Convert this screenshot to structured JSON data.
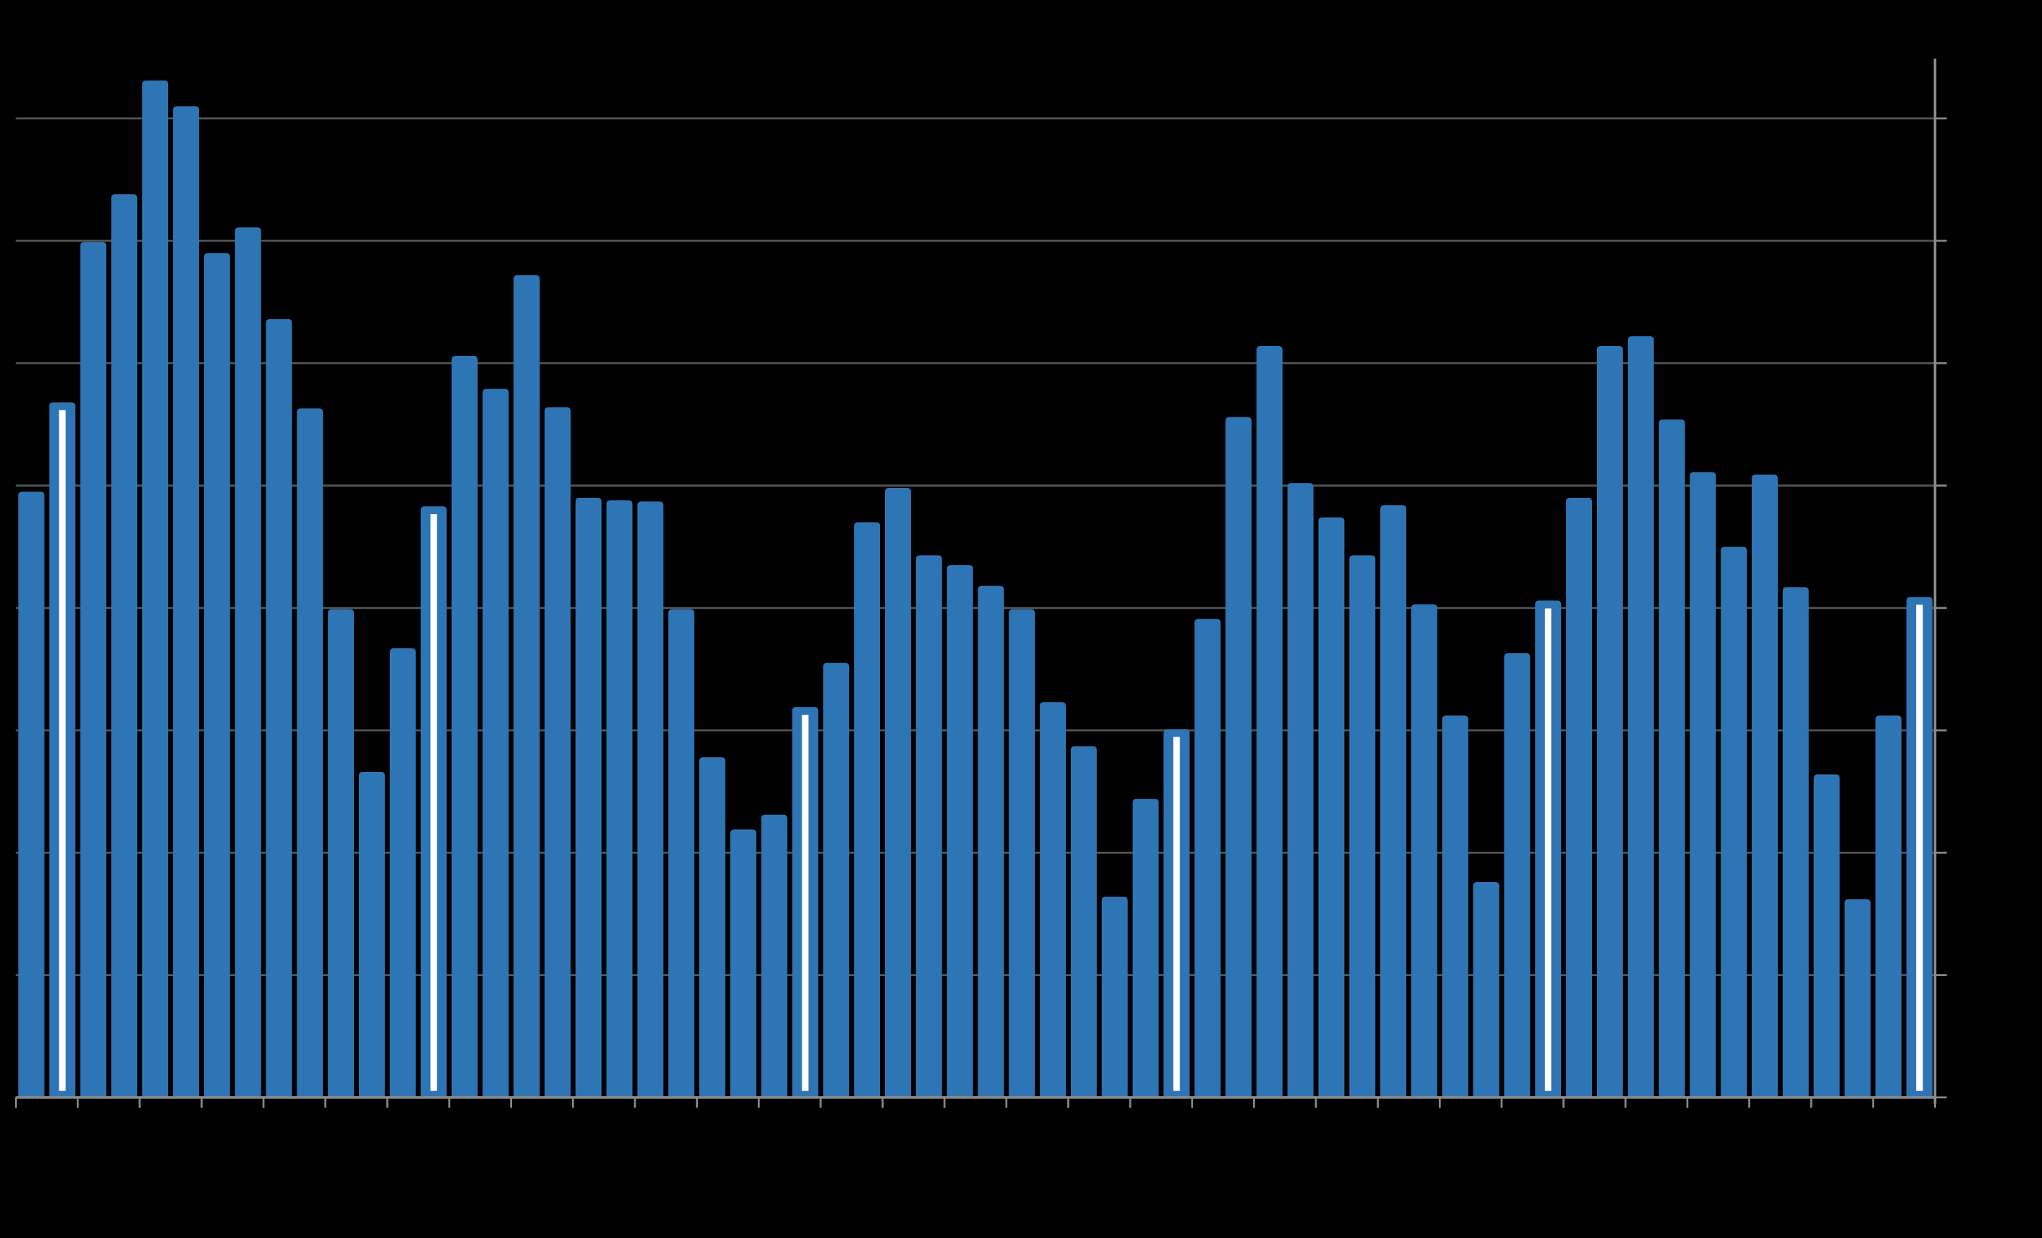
{
  "chart_data": {
    "type": "bar",
    "title": "",
    "xlabel": "",
    "ylabel": "",
    "ylim": [
      0,
      8.5
    ],
    "grid": true,
    "y_axis_position": "right",
    "colors": {
      "background": "#000000",
      "bar": "#2e75b6",
      "marker": "#ffffff",
      "grid": "#555555",
      "axis": "#888888"
    },
    "values": [
      4.95,
      5.68,
      6.99,
      7.38,
      8.31,
      8.1,
      6.9,
      7.11,
      6.36,
      5.63,
      3.99,
      2.66,
      3.67,
      4.83,
      6.06,
      5.79,
      6.72,
      5.64,
      4.9,
      4.88,
      4.87,
      3.99,
      2.78,
      2.19,
      2.31,
      3.19,
      3.55,
      4.7,
      4.98,
      4.43,
      4.35,
      4.18,
      3.99,
      3.23,
      2.87,
      1.64,
      2.44,
      3.01,
      3.91,
      5.56,
      6.14,
      5.02,
      4.74,
      4.43,
      4.84,
      4.03,
      3.12,
      1.76,
      3.63,
      4.06,
      4.9,
      6.14,
      6.22,
      5.54,
      5.11,
      4.5,
      5.09,
      4.17,
      2.64,
      1.62,
      3.12,
      4.09
    ],
    "highlighted_bars": [
      2,
      14,
      26,
      38,
      50,
      62
    ]
  }
}
